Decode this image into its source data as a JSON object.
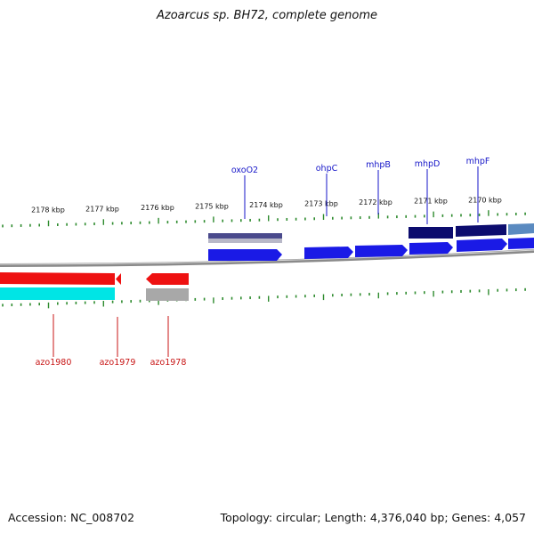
{
  "title": "Azoarcus sp. BH72, complete genome",
  "footer": {
    "accession": "Accession: NC_008702",
    "topology": "Topology: circular; Length: 4,376,040 bp; Genes: 4,057"
  },
  "colors": {
    "forward_label": "#1515c8",
    "reverse_label": "#c81515",
    "forward_gene": "#1a1ae6",
    "reverse_gene": "#ee1111",
    "tick": "#2e8b2e",
    "backbone": "#8a8a8a"
  },
  "scale": {
    "unit": "kbp",
    "labels": [
      "2178 kbp",
      "2177 kbp",
      "2176 kbp",
      "2175 kbp",
      "2174 kbp",
      "2173 kbp",
      "2172 kbp",
      "2171 kbp",
      "2170 kbp"
    ]
  },
  "genes_forward": [
    {
      "name": "oxoO2"
    },
    {
      "name": "ohpC"
    },
    {
      "name": "mhpB"
    },
    {
      "name": "mhpD"
    },
    {
      "name": "mhpF"
    }
  ],
  "genes_reverse": [
    {
      "name": "azo1980"
    },
    {
      "name": "azo1979"
    },
    {
      "name": "azo1978"
    }
  ]
}
